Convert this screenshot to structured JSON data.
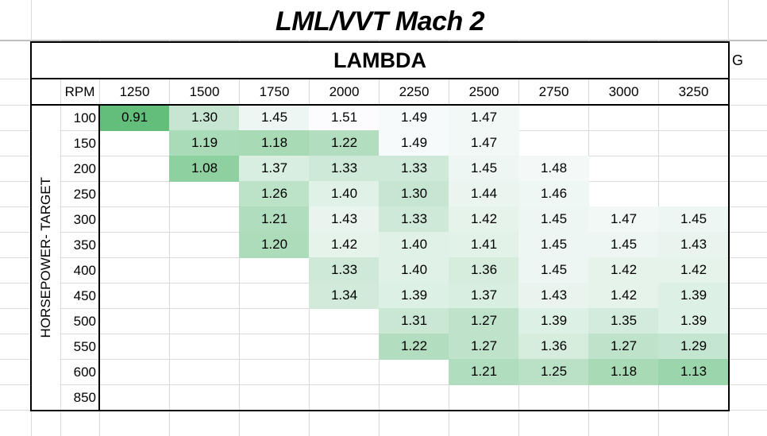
{
  "sheet": {
    "title": "LML/VVT Mach 2",
    "side_cell_text": "G"
  },
  "table": {
    "title": "LAMBDA",
    "rpm_header_label": "RPM",
    "row_axis_label": "HORSEPOWER- TARGET",
    "rpm_columns": [
      "1250",
      "1500",
      "1750",
      "2000",
      "2250",
      "2500",
      "2750",
      "3000",
      "3250"
    ],
    "rows": [
      {
        "hp": "100",
        "values": [
          "0.91",
          "1.30",
          "1.45",
          "1.51",
          "1.49",
          "1.47",
          "",
          "",
          ""
        ]
      },
      {
        "hp": "150",
        "values": [
          "",
          "1.19",
          "1.18",
          "1.22",
          "1.49",
          "1.47",
          "",
          "",
          ""
        ]
      },
      {
        "hp": "200",
        "values": [
          "",
          "1.08",
          "1.37",
          "1.33",
          "1.33",
          "1.45",
          "1.48",
          "",
          ""
        ]
      },
      {
        "hp": "250",
        "values": [
          "",
          "",
          "1.26",
          "1.40",
          "1.30",
          "1.44",
          "1.46",
          "",
          ""
        ]
      },
      {
        "hp": "300",
        "values": [
          "",
          "",
          "1.21",
          "1.43",
          "1.33",
          "1.42",
          "1.45",
          "1.47",
          "1.45"
        ]
      },
      {
        "hp": "350",
        "values": [
          "",
          "",
          "1.20",
          "1.42",
          "1.40",
          "1.41",
          "1.45",
          "1.45",
          "1.43"
        ]
      },
      {
        "hp": "400",
        "values": [
          "",
          "",
          "",
          "1.33",
          "1.40",
          "1.36",
          "1.45",
          "1.42",
          "1.42"
        ]
      },
      {
        "hp": "450",
        "values": [
          "",
          "",
          "",
          "1.34",
          "1.39",
          "1.37",
          "1.43",
          "1.42",
          "1.39"
        ]
      },
      {
        "hp": "500",
        "values": [
          "",
          "",
          "",
          "",
          "1.31",
          "1.27",
          "1.39",
          "1.35",
          "1.39"
        ]
      },
      {
        "hp": "550",
        "values": [
          "",
          "",
          "",
          "",
          "1.22",
          "1.27",
          "1.36",
          "1.27",
          "1.29"
        ]
      },
      {
        "hp": "600",
        "values": [
          "",
          "",
          "",
          "",
          "",
          "1.21",
          "1.25",
          "1.18",
          "1.13"
        ]
      },
      {
        "hp": "850",
        "values": [
          "",
          "",
          "",
          "",
          "",
          "",
          "",
          "",
          ""
        ]
      }
    ]
  },
  "colors": {
    "scale_low": "#63BE7B",
    "scale_high": "#FCFCFF",
    "border": "#000000",
    "gridline": "#D9D9D9",
    "text": "#000000"
  }
}
